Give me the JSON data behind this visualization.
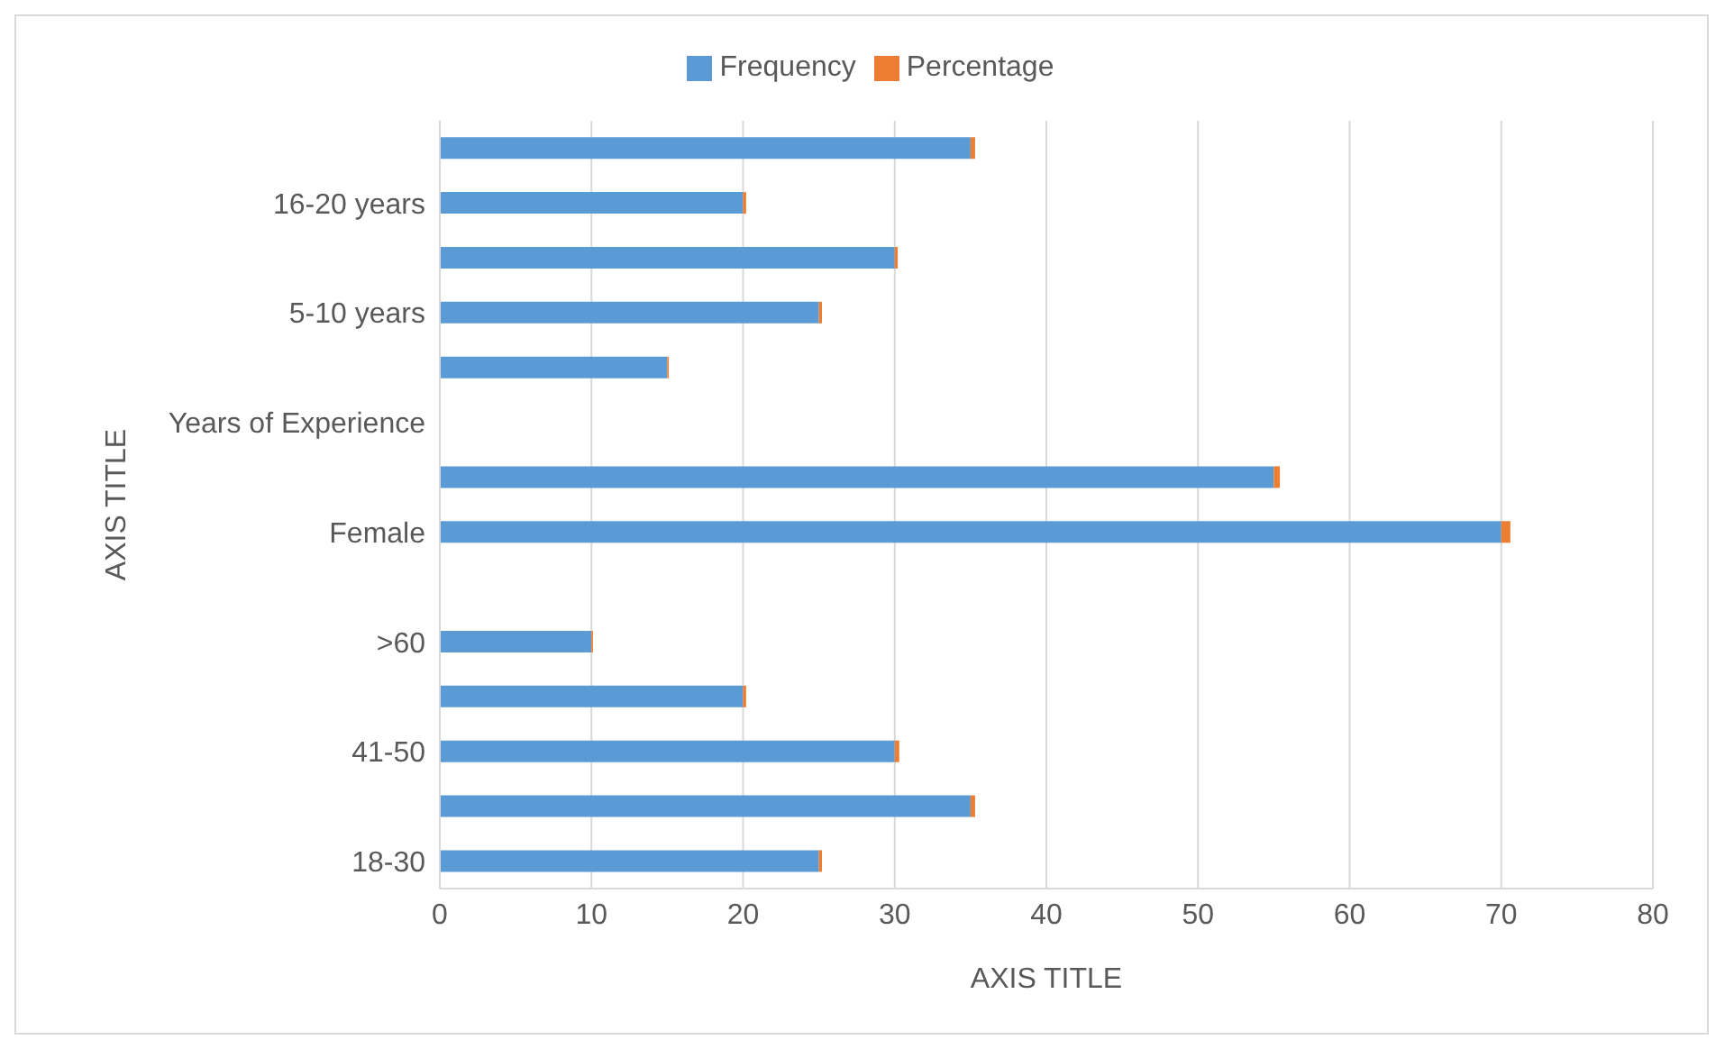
{
  "chart_data": {
    "type": "bar",
    "orientation": "horizontal",
    "stacked": true,
    "categories": [
      null,
      "16-20 years",
      null,
      "5-10 years",
      null,
      "Years of Experience",
      null,
      "Female",
      null,
      ">60",
      null,
      "41-50",
      null,
      "18-30"
    ],
    "series": [
      {
        "name": "Frequency",
        "color": "#5b9bd5",
        "values": [
          35,
          20,
          30,
          25,
          15,
          null,
          55,
          70,
          null,
          10,
          20,
          30,
          35,
          25
        ]
      },
      {
        "name": "Percentage",
        "color": "#ed7d31",
        "values": [
          0.3,
          0.2,
          0.2,
          0.2,
          0.1,
          null,
          0.4,
          0.6,
          null,
          0.1,
          0.2,
          0.3,
          0.3,
          0.2
        ]
      }
    ],
    "xlim": [
      0,
      80
    ],
    "xticks": [
      0,
      10,
      20,
      30,
      40,
      50,
      60,
      70,
      80
    ],
    "xlabel": "AXIS TITLE",
    "ylabel": "AXIS TITLE",
    "grid": "x",
    "legend": "top"
  }
}
